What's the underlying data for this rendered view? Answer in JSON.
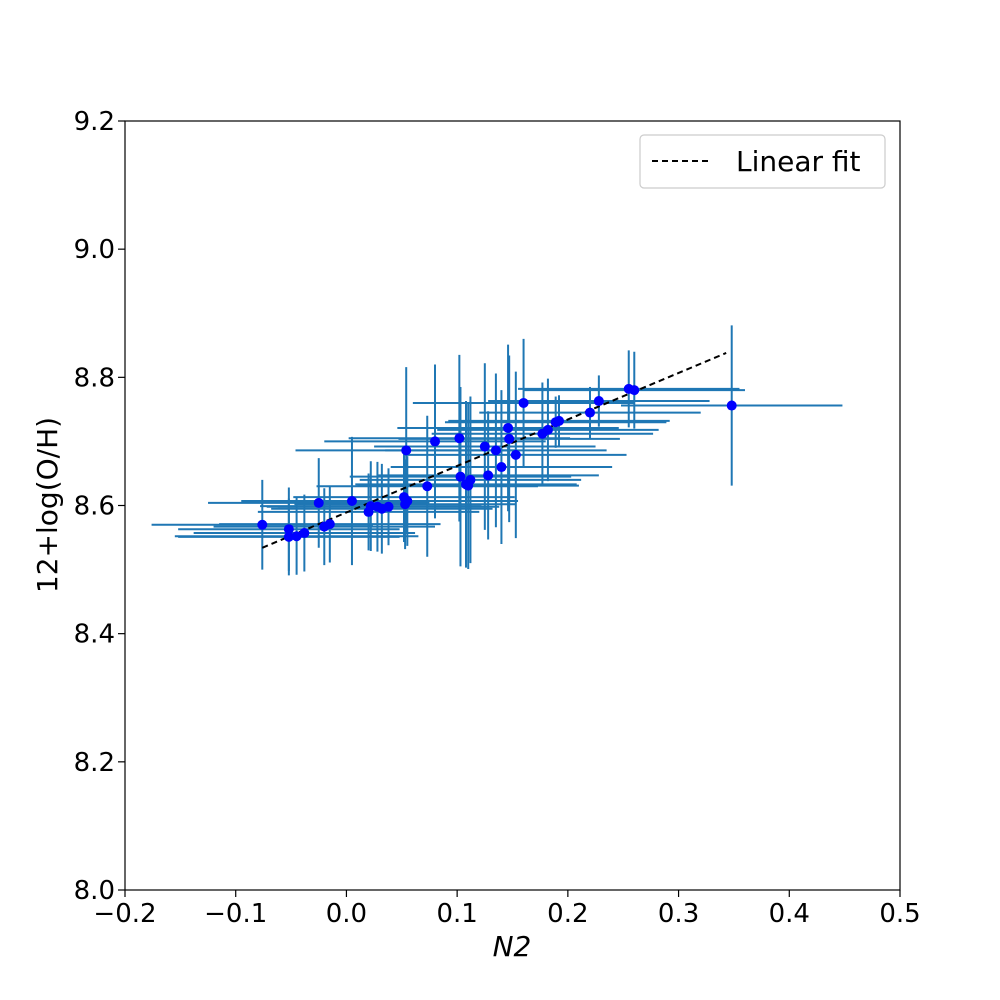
{
  "chart_data": {
    "type": "scatter",
    "xlabel": "N2",
    "ylabel": "12+log(O/H)",
    "xlim": [
      -0.2,
      0.5
    ],
    "ylim": [
      8.0,
      9.2
    ],
    "x_ticks": [
      -0.2,
      -0.1,
      0.0,
      0.1,
      0.2,
      0.3,
      0.4,
      0.5
    ],
    "y_ticks": [
      8.0,
      8.2,
      8.4,
      8.6,
      8.8,
      9.0,
      9.2
    ],
    "x_tick_labels": [
      "−0.2",
      "−0.1",
      "0.0",
      "0.1",
      "0.2",
      "0.3",
      "0.4",
      "0.5"
    ],
    "y_tick_labels": [
      "8.0",
      "8.2",
      "8.4",
      "8.6",
      "8.8",
      "9.0",
      "9.2"
    ],
    "grid": false,
    "legend": {
      "position": "top-right",
      "entries": [
        "Linear fit"
      ]
    },
    "colors": {
      "point": "#0000ff",
      "errorbar": "#1f77b4",
      "fit": "#000000"
    },
    "fit_line": {
      "name": "Linear fit",
      "x": [
        -0.076,
        0.343
      ],
      "y": [
        8.534,
        8.838
      ]
    },
    "points": [
      {
        "x": -0.076,
        "y": 8.57,
        "xerr": 0.1,
        "yerr": 0.07
      },
      {
        "x": -0.052,
        "y": 8.563,
        "xerr": 0.1,
        "yerr": 0.065
      },
      {
        "x": -0.052,
        "y": 8.551,
        "xerr": 0.1,
        "yerr": 0.06
      },
      {
        "x": -0.045,
        "y": 8.552,
        "xerr": 0.11,
        "yerr": 0.06
      },
      {
        "x": -0.038,
        "y": 8.557,
        "xerr": 0.1,
        "yerr": 0.06
      },
      {
        "x": -0.025,
        "y": 8.604,
        "xerr": 0.1,
        "yerr": 0.07
      },
      {
        "x": -0.02,
        "y": 8.567,
        "xerr": 0.1,
        "yerr": 0.06
      },
      {
        "x": -0.015,
        "y": 8.571,
        "xerr": 0.1,
        "yerr": 0.06
      },
      {
        "x": 0.005,
        "y": 8.607,
        "xerr": 0.1,
        "yerr": 0.1
      },
      {
        "x": 0.02,
        "y": 8.59,
        "xerr": 0.1,
        "yerr": 0.06
      },
      {
        "x": 0.022,
        "y": 8.599,
        "xerr": 0.1,
        "yerr": 0.07
      },
      {
        "x": 0.028,
        "y": 8.598,
        "xerr": 0.1,
        "yerr": 0.07
      },
      {
        "x": 0.032,
        "y": 8.595,
        "xerr": 0.1,
        "yerr": 0.07
      },
      {
        "x": 0.038,
        "y": 8.598,
        "xerr": 0.1,
        "yerr": 0.06
      },
      {
        "x": 0.052,
        "y": 8.613,
        "xerr": 0.1,
        "yerr": 0.07
      },
      {
        "x": 0.053,
        "y": 8.602,
        "xerr": 0.1,
        "yerr": 0.07
      },
      {
        "x": 0.054,
        "y": 8.686,
        "xerr": 0.1,
        "yerr": 0.13
      },
      {
        "x": 0.055,
        "y": 8.607,
        "xerr": 0.1,
        "yerr": 0.07
      },
      {
        "x": 0.073,
        "y": 8.63,
        "xerr": 0.1,
        "yerr": 0.11
      },
      {
        "x": 0.08,
        "y": 8.7,
        "xerr": 0.1,
        "yerr": 0.12
      },
      {
        "x": 0.102,
        "y": 8.705,
        "xerr": 0.1,
        "yerr": 0.13
      },
      {
        "x": 0.103,
        "y": 8.645,
        "xerr": 0.1,
        "yerr": 0.14
      },
      {
        "x": 0.108,
        "y": 8.633,
        "xerr": 0.1,
        "yerr": 0.13
      },
      {
        "x": 0.11,
        "y": 8.631,
        "xerr": 0.1,
        "yerr": 0.13
      },
      {
        "x": 0.112,
        "y": 8.64,
        "xerr": 0.1,
        "yerr": 0.13
      },
      {
        "x": 0.125,
        "y": 8.692,
        "xerr": 0.1,
        "yerr": 0.13
      },
      {
        "x": 0.128,
        "y": 8.647,
        "xerr": 0.1,
        "yerr": 0.1
      },
      {
        "x": 0.135,
        "y": 8.686,
        "xerr": 0.1,
        "yerr": 0.12
      },
      {
        "x": 0.14,
        "y": 8.66,
        "xerr": 0.1,
        "yerr": 0.12
      },
      {
        "x": 0.146,
        "y": 8.721,
        "xerr": 0.1,
        "yerr": 0.13
      },
      {
        "x": 0.147,
        "y": 8.704,
        "xerr": 0.1,
        "yerr": 0.13
      },
      {
        "x": 0.153,
        "y": 8.679,
        "xerr": 0.1,
        "yerr": 0.13
      },
      {
        "x": 0.16,
        "y": 8.76,
        "xerr": 0.1,
        "yerr": 0.1
      },
      {
        "x": 0.177,
        "y": 8.712,
        "xerr": 0.1,
        "yerr": 0.08
      },
      {
        "x": 0.182,
        "y": 8.718,
        "xerr": 0.1,
        "yerr": 0.08
      },
      {
        "x": 0.189,
        "y": 8.73,
        "xerr": 0.1,
        "yerr": 0.04
      },
      {
        "x": 0.192,
        "y": 8.732,
        "xerr": 0.1,
        "yerr": 0.04
      },
      {
        "x": 0.22,
        "y": 8.745,
        "xerr": 0.1,
        "yerr": 0.04
      },
      {
        "x": 0.228,
        "y": 8.763,
        "xerr": 0.1,
        "yerr": 0.04
      },
      {
        "x": 0.255,
        "y": 8.782,
        "xerr": 0.1,
        "yerr": 0.06
      },
      {
        "x": 0.26,
        "y": 8.78,
        "xerr": 0.1,
        "yerr": 0.06
      },
      {
        "x": 0.348,
        "y": 8.756,
        "xerr": 0.1,
        "yerr": 0.125
      }
    ]
  }
}
